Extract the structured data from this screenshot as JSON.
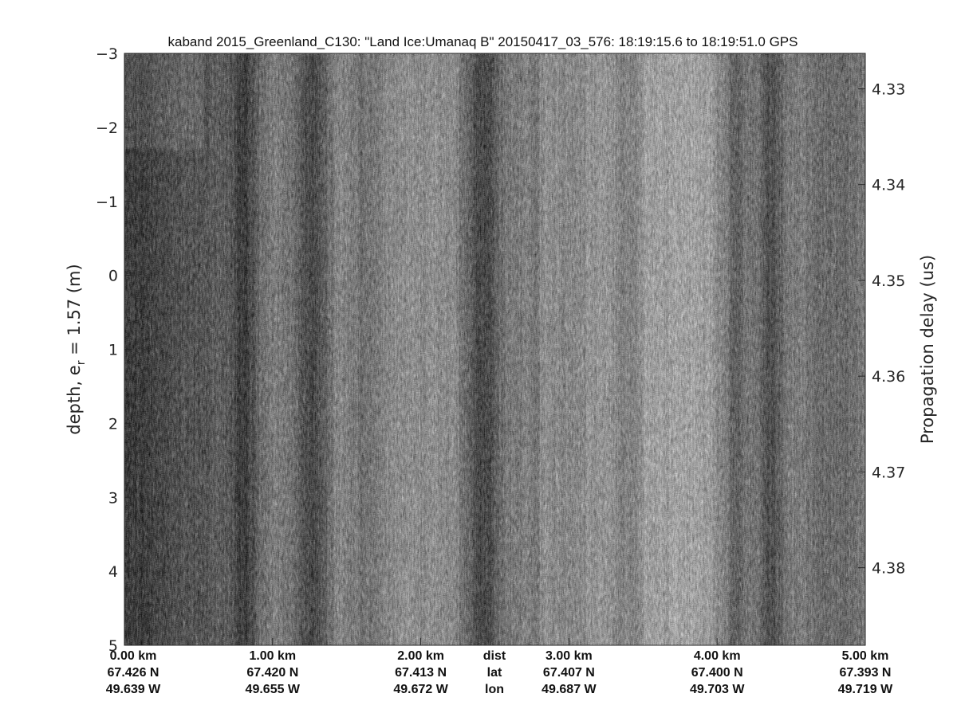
{
  "chart_data": {
    "type": "heatmap",
    "colormap": "gray",
    "title": "kaband 2015_Greenland_C130: \"Land Ice:Umanaq B\"  20150417_03_576: 18:19:15.6 to 18:19:51.0 GPS",
    "ylabel": "depth, e",
    "ylabel_sub": "r",
    "ylabel_rest": " = 1.57 (m)",
    "ylim": [
      -3,
      5
    ],
    "yticks": [
      "-3",
      "-2",
      "-1",
      "0",
      "1",
      "2",
      "3",
      "4",
      "5"
    ],
    "y2label": "Propagation delay (us)",
    "y2lim": [
      4.3263,
      4.3881
    ],
    "y2ticks": [
      "4.33",
      "4.34",
      "4.35",
      "4.36",
      "4.37",
      "4.38"
    ],
    "xlim_km": [
      0,
      5
    ],
    "xticks": [
      {
        "dist": "0.00 km",
        "lat": "67.426 N",
        "lon": "49.639 W"
      },
      {
        "dist": "1.00 km",
        "lat": "67.420 N",
        "lon": "49.655 W"
      },
      {
        "dist": "2.00 km",
        "lat": "67.413 N",
        "lon": "49.672 W"
      },
      {
        "dist": "3.00 km",
        "lat": "67.407 N",
        "lon": "49.687 W"
      },
      {
        "dist": "4.00 km",
        "lat": "67.400 N",
        "lon": "49.703 W"
      },
      {
        "dist": "5.00 km",
        "lat": "67.393 N",
        "lon": "49.719 W"
      }
    ],
    "row_labels": {
      "dist": "dist",
      "lat": "lat",
      "lon": "lon"
    }
  }
}
